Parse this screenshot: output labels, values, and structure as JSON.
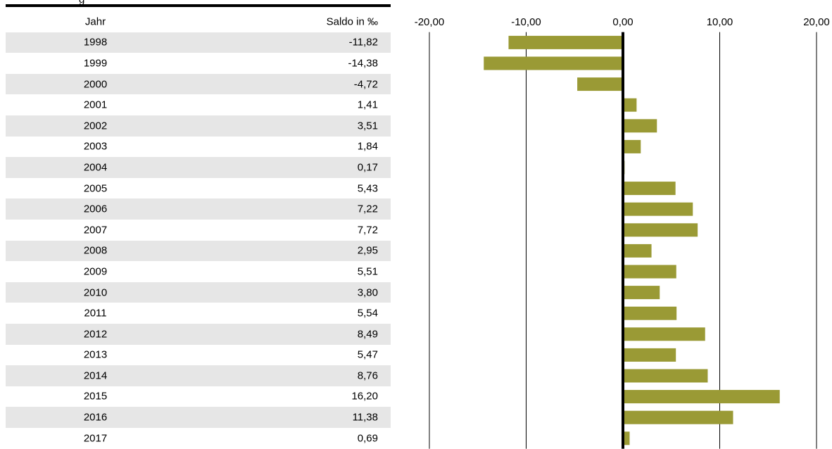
{
  "table": {
    "col_year": "Jahr",
    "col_value": "Saldo in ‰"
  },
  "colors": {
    "bar": "#9a9a35",
    "zero_line": "#000000",
    "grid": "#000000",
    "row_shade": "#e6e6e6"
  },
  "chart_data": {
    "type": "bar",
    "orientation": "horizontal",
    "categories": [
      "1998",
      "1999",
      "2000",
      "2001",
      "2002",
      "2003",
      "2004",
      "2005",
      "2006",
      "2007",
      "2008",
      "2009",
      "2010",
      "2011",
      "2012",
      "2013",
      "2014",
      "2015",
      "2016",
      "2017"
    ],
    "values": [
      -11.82,
      -14.38,
      -4.72,
      1.41,
      3.51,
      1.84,
      0.17,
      5.43,
      7.22,
      7.72,
      2.95,
      5.51,
      3.8,
      5.54,
      8.49,
      5.47,
      8.76,
      16.2,
      11.38,
      0.69
    ],
    "value_labels": [
      "-11,82",
      "-14,38",
      "-4,72",
      "1,41",
      "3,51",
      "1,84",
      "0,17",
      "5,43",
      "7,22",
      "7,72",
      "2,95",
      "5,51",
      "3,80",
      "5,54",
      "8,49",
      "5,47",
      "8,76",
      "16,20",
      "11,38",
      "0,69"
    ],
    "xlim": [
      -20,
      20
    ],
    "ticks": [
      -20,
      -10,
      0,
      10,
      20
    ],
    "tick_labels": [
      "-20,00",
      "-10,00",
      "0,00",
      "10,00",
      "20,00"
    ],
    "grid": true
  }
}
